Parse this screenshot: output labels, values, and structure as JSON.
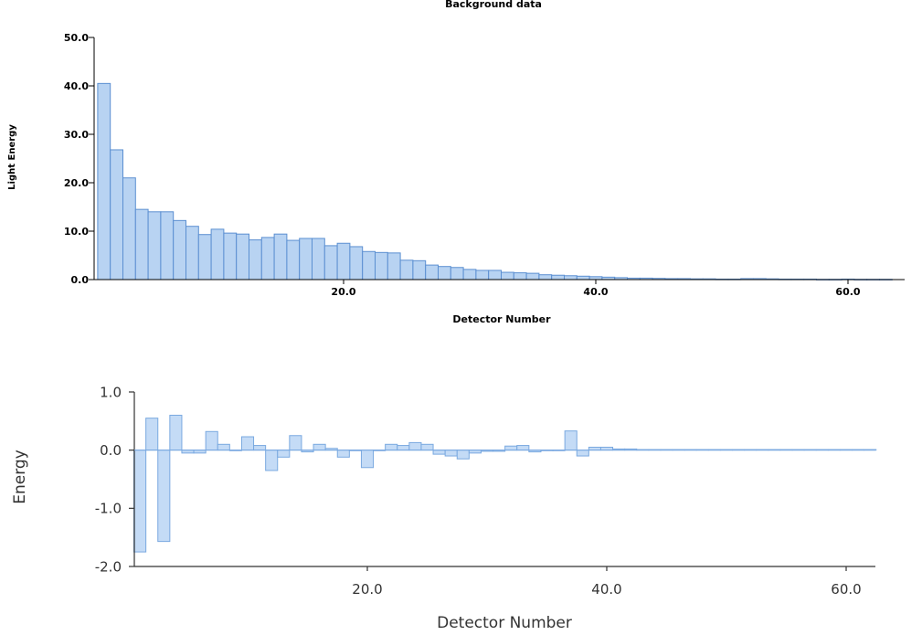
{
  "chart_data": [
    {
      "type": "bar",
      "title": "Background data",
      "xlabel": "Detector Number",
      "ylabel": "Light Energy",
      "xlim": [
        0,
        64
      ],
      "ylim": [
        0,
        50
      ],
      "xticks": [
        20,
        40,
        60
      ],
      "xtick_labels": [
        "20.0",
        "40.0",
        "60.0"
      ],
      "yticks": [
        0,
        10,
        20,
        30,
        40,
        50
      ],
      "ytick_labels": [
        "0.0",
        "10.0",
        "20.0",
        "30.0",
        "40.0",
        "50.0"
      ],
      "bar_fill": "#b8d3f2",
      "bar_stroke": "#5b8fd1",
      "grid": false,
      "x": [
        1,
        2,
        3,
        4,
        5,
        6,
        7,
        8,
        9,
        10,
        11,
        12,
        13,
        14,
        15,
        16,
        17,
        18,
        19,
        20,
        21,
        22,
        23,
        24,
        25,
        26,
        27,
        28,
        29,
        30,
        31,
        32,
        33,
        34,
        35,
        36,
        37,
        38,
        39,
        40,
        41,
        42,
        43,
        44,
        45,
        46,
        47,
        48,
        49,
        50,
        51,
        52,
        53,
        54,
        55,
        56,
        57,
        58,
        59,
        60,
        61,
        62,
        63
      ],
      "values": [
        40.5,
        26.8,
        21.0,
        14.5,
        14.0,
        14.0,
        12.2,
        11.0,
        9.3,
        10.4,
        9.6,
        9.4,
        8.2,
        8.7,
        9.4,
        8.1,
        8.5,
        8.5,
        7.0,
        7.5,
        6.8,
        5.8,
        5.6,
        5.5,
        4.0,
        3.9,
        3.0,
        2.7,
        2.5,
        2.1,
        1.9,
        1.9,
        1.5,
        1.4,
        1.3,
        1.0,
        0.9,
        0.8,
        0.7,
        0.6,
        0.5,
        0.4,
        0.3,
        0.3,
        0.25,
        0.2,
        0.2,
        0.15,
        0.15,
        0.1,
        0.1,
        0.2,
        0.2,
        0.15,
        0.1,
        0.1,
        0.1,
        0.05,
        0.05,
        0.1,
        0.05,
        0.05,
        0.05
      ]
    },
    {
      "type": "bar",
      "title": "",
      "xlabel": "Detector Number",
      "ylabel": "Energy",
      "xlim": [
        0,
        62
      ],
      "ylim": [
        -2,
        1
      ],
      "xticks": [
        20,
        40,
        60
      ],
      "xtick_labels": [
        "20.0",
        "40.0",
        "60.0"
      ],
      "yticks": [
        -2,
        -1,
        0,
        1
      ],
      "ytick_labels": [
        "-2.0",
        "-1.0",
        "0.0",
        "1.0"
      ],
      "bar_fill": "#c4dbf6",
      "bar_stroke": "#7aa9e0",
      "grid": false,
      "x": [
        1,
        2,
        3,
        4,
        5,
        6,
        7,
        8,
        9,
        10,
        11,
        12,
        13,
        14,
        15,
        16,
        17,
        18,
        19,
        20,
        21,
        22,
        23,
        24,
        25,
        26,
        27,
        28,
        29,
        30,
        31,
        32,
        33,
        34,
        35,
        36,
        37,
        38,
        39,
        40,
        41,
        42,
        43,
        44,
        45,
        46,
        47,
        48,
        49,
        50,
        51,
        52,
        53,
        54,
        55,
        56,
        57,
        58,
        59,
        60,
        61,
        62
      ],
      "values": [
        -1.75,
        0.55,
        -1.57,
        0.6,
        -0.05,
        -0.05,
        0.32,
        0.1,
        0.0,
        0.23,
        0.08,
        -0.35,
        -0.12,
        0.25,
        -0.03,
        0.1,
        0.03,
        -0.12,
        0.0,
        -0.3,
        0.0,
        0.1,
        0.08,
        0.13,
        0.1,
        -0.07,
        -0.1,
        -0.15,
        -0.05,
        -0.02,
        -0.02,
        0.07,
        0.08,
        -0.03,
        0.0,
        0.0,
        0.33,
        -0.1,
        0.05,
        0.05,
        0.02,
        0.02,
        0.01,
        0.01,
        0.01,
        0.01,
        0.01,
        0.01,
        0.01,
        0.01,
        0.01,
        0.01,
        0.01,
        0.01,
        0.01,
        0.01,
        0.01,
        0.01,
        0.01,
        0.01,
        0.01,
        0.01
      ]
    }
  ]
}
